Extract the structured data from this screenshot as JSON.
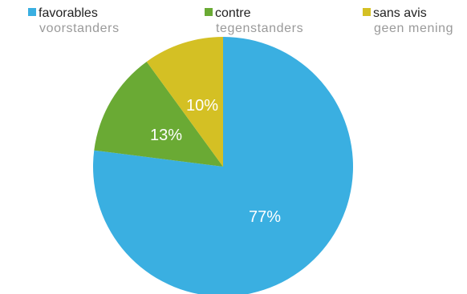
{
  "chart_data": {
    "type": "pie",
    "title": "",
    "legend_position": "top",
    "slices": [
      {
        "label": "favorables",
        "sublabel": "voorstanders",
        "value": 77,
        "value_label": "77%",
        "color": "#3aafe1"
      },
      {
        "label": "contre",
        "sublabel": "tegenstanders",
        "value": 13,
        "value_label": "13%",
        "color": "#6aaa34"
      },
      {
        "label": "sans avis",
        "sublabel": "geen mening",
        "value": 10,
        "value_label": "10%",
        "color": "#d4c024"
      }
    ]
  }
}
